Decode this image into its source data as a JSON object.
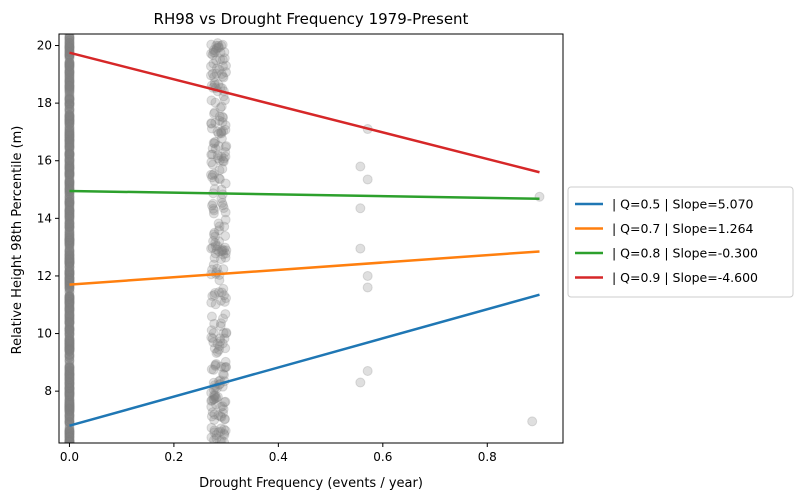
{
  "chart_data": {
    "type": "scatter",
    "title": "RH98 vs Drought Frequency 1979-Present",
    "xlabel": "Drought Frequency (events / year)",
    "ylabel": "Relative Height 98th Percentile (m)",
    "xlim": [
      -0.02,
      0.945
    ],
    "ylim": [
      6.2,
      20.4
    ],
    "x_ticks": [
      0.0,
      0.2,
      0.4,
      0.6,
      0.8
    ],
    "x_tick_labels": [
      "0.0",
      "0.2",
      "0.4",
      "0.6",
      "0.8"
    ],
    "y_ticks": [
      8,
      10,
      12,
      14,
      16,
      18,
      20
    ],
    "y_tick_labels": [
      "8",
      "10",
      "12",
      "14",
      "16",
      "18",
      "20"
    ],
    "grid": false,
    "legend_position": "outside-right",
    "scatter": {
      "color": "#808080",
      "opacity": 0.25,
      "clusters": [
        {
          "x": 0.0,
          "y_min": 6.2,
          "y_max": 20.4,
          "dense": true
        },
        {
          "x": 0.286,
          "y_min": 6.2,
          "y_max": 20.2,
          "dense": true
        }
      ],
      "points": [
        {
          "x": 0.571,
          "y": 17.1
        },
        {
          "x": 0.557,
          "y": 15.8
        },
        {
          "x": 0.571,
          "y": 15.35
        },
        {
          "x": 0.557,
          "y": 14.35
        },
        {
          "x": 0.557,
          "y": 12.95
        },
        {
          "x": 0.571,
          "y": 12.0
        },
        {
          "x": 0.571,
          "y": 11.6
        },
        {
          "x": 0.571,
          "y": 8.7
        },
        {
          "x": 0.557,
          "y": 8.3
        },
        {
          "x": 0.9,
          "y": 14.75
        },
        {
          "x": 0.886,
          "y": 6.95
        }
      ]
    },
    "series": [
      {
        "name": "  | Q=0.5 | Slope=5.070",
        "color": "#1f77b4",
        "x": [
          0.0,
          0.9
        ],
        "y": [
          6.8,
          11.35
        ]
      },
      {
        "name": "  | Q=0.7 | Slope=1.264",
        "color": "#ff7f0e",
        "x": [
          0.0,
          0.9
        ],
        "y": [
          11.7,
          12.85
        ]
      },
      {
        "name": "  | Q=0.8 | Slope=-0.300",
        "color": "#2ca02c",
        "x": [
          0.0,
          0.9
        ],
        "y": [
          14.95,
          14.68
        ]
      },
      {
        "name": "  | Q=0.9 | Slope=-4.600",
        "color": "#d62728",
        "x": [
          0.0,
          0.9
        ],
        "y": [
          19.75,
          15.6
        ]
      }
    ]
  }
}
